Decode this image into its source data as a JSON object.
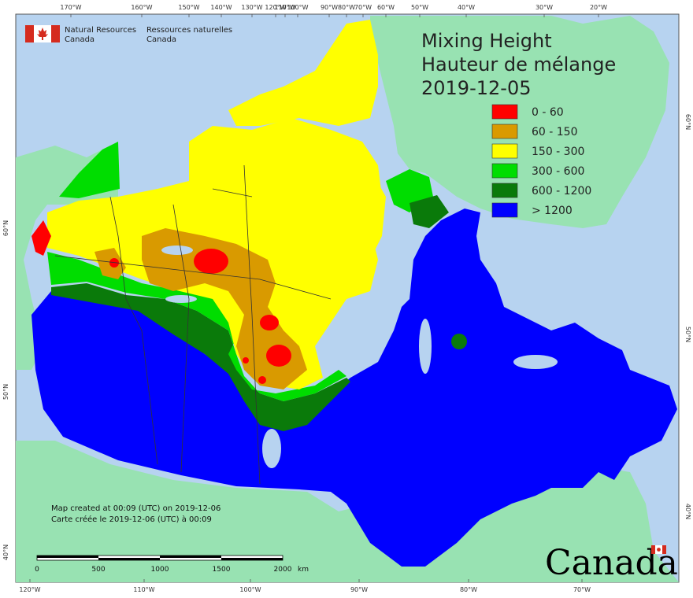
{
  "branding": {
    "agency_en_line1": "Natural Resources",
    "agency_en_line2": "Canada",
    "agency_fr_line1": "Ressources naturelles",
    "agency_fr_line2": "Canada",
    "wordmark": "Canada"
  },
  "title": {
    "line1": "Mixing Height",
    "line2": "Hauteur de mélange",
    "date": "2019-12-05"
  },
  "legend": [
    {
      "label": "0 - 60",
      "color": "#ff0000"
    },
    {
      "label": "60 - 150",
      "color": "#d99a00"
    },
    {
      "label": "150 - 300",
      "color": "#ffff00"
    },
    {
      "label": "300 - 600",
      "color": "#00dd00"
    },
    {
      "label": "600 - 1200",
      "color": "#0a7a0a"
    },
    {
      "label": "> 1200",
      "color": "#0000ff"
    }
  ],
  "top_ticks": [
    "170°W",
    "160°W",
    "150°W",
    "140°W",
    "130°W",
    "120°W",
    "110°W",
    "100°W",
    "90°W",
    "80°W",
    "70°W",
    "60°W",
    "50°W",
    "40°W",
    "30°W",
    "20°W"
  ],
  "bottom_ticks": [
    "120°W",
    "110°W",
    "100°W",
    "90°W",
    "80°W",
    "70°W"
  ],
  "left_ticks": [
    "60°N",
    "50°N",
    "40°N"
  ],
  "right_ticks": [
    "60°N",
    "50°N",
    "40°N"
  ],
  "notes": {
    "line1": "Map created at 00:09 (UTC) on 2019-12-06",
    "line2": "Carte créée le 2019-12-06 (UTC) à 00:09"
  },
  "scale_bar": {
    "labels": [
      "0",
      "500",
      "1000",
      "1500",
      "2000"
    ],
    "unit": "km"
  },
  "colors": {
    "ocean": "#b7d3f0",
    "land_other": "#98e2b2",
    "frame": "#555555"
  }
}
